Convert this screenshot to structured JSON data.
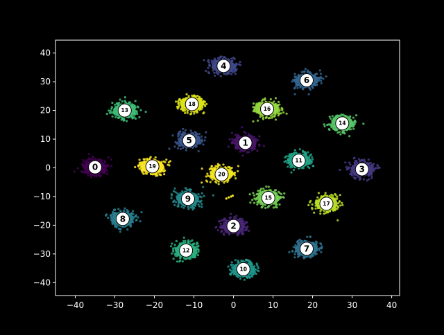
{
  "chart_data": {
    "type": "scatter",
    "xlim": [
      -45,
      42
    ],
    "ylim": [
      -44.5,
      44.5
    ],
    "xticks": [
      -40,
      -30,
      -20,
      -10,
      0,
      10,
      20,
      30,
      40
    ],
    "yticks": [
      -40,
      -30,
      -20,
      -10,
      0,
      10,
      20,
      30,
      40
    ],
    "xtick_labels": [
      "−40",
      "−30",
      "−20",
      "−10",
      "0",
      "10",
      "20",
      "30",
      "40"
    ],
    "ytick_labels": [
      "−40",
      "−30",
      "−20",
      "−10",
      "0",
      "10",
      "20",
      "30",
      "40"
    ],
    "grid": false,
    "legend": "none",
    "colormap": "viridis",
    "background": "#000000",
    "axis_color": "#ffffff",
    "clusters": [
      {
        "label": "0",
        "x": -35.0,
        "y": 0.2,
        "color": "#440154"
      },
      {
        "label": "1",
        "x": 3.0,
        "y": 8.7,
        "color": "#481567"
      },
      {
        "label": "2",
        "x": 0.0,
        "y": -20.3,
        "color": "#482677"
      },
      {
        "label": "3",
        "x": 32.5,
        "y": -0.5,
        "color": "#453781"
      },
      {
        "label": "4",
        "x": -2.5,
        "y": 35.5,
        "color": "#3f4788"
      },
      {
        "label": "5",
        "x": -11.2,
        "y": 9.5,
        "color": "#39558c"
      },
      {
        "label": "6",
        "x": 18.5,
        "y": 30.5,
        "color": "#32648e"
      },
      {
        "label": "7",
        "x": 18.5,
        "y": -28.2,
        "color": "#2d718e"
      },
      {
        "label": "8",
        "x": -28.0,
        "y": -17.8,
        "color": "#287d8e"
      },
      {
        "label": "9",
        "x": -11.5,
        "y": -10.8,
        "color": "#238a8d"
      },
      {
        "label": "10",
        "x": 2.5,
        "y": -35.3,
        "color": "#1f968b"
      },
      {
        "label": "11",
        "x": 16.5,
        "y": 2.5,
        "color": "#20a386"
      },
      {
        "label": "12",
        "x": -12.0,
        "y": -28.8,
        "color": "#29af7f"
      },
      {
        "label": "13",
        "x": -27.5,
        "y": 20.0,
        "color": "#3dbc74"
      },
      {
        "label": "14",
        "x": 27.5,
        "y": 15.5,
        "color": "#56c667"
      },
      {
        "label": "15",
        "x": 8.8,
        "y": -10.5,
        "color": "#75d054"
      },
      {
        "label": "16",
        "x": 8.5,
        "y": 20.5,
        "color": "#95d840"
      },
      {
        "label": "17",
        "x": 23.5,
        "y": -12.5,
        "color": "#bade28"
      },
      {
        "label": "18",
        "x": -10.5,
        "y": 22.2,
        "color": "#dde318"
      },
      {
        "label": "19",
        "x": -20.5,
        "y": 0.5,
        "color": "#fde725"
      },
      {
        "label": "20",
        "x": -3.0,
        "y": -2.3,
        "color": "#f2e51d"
      }
    ]
  }
}
